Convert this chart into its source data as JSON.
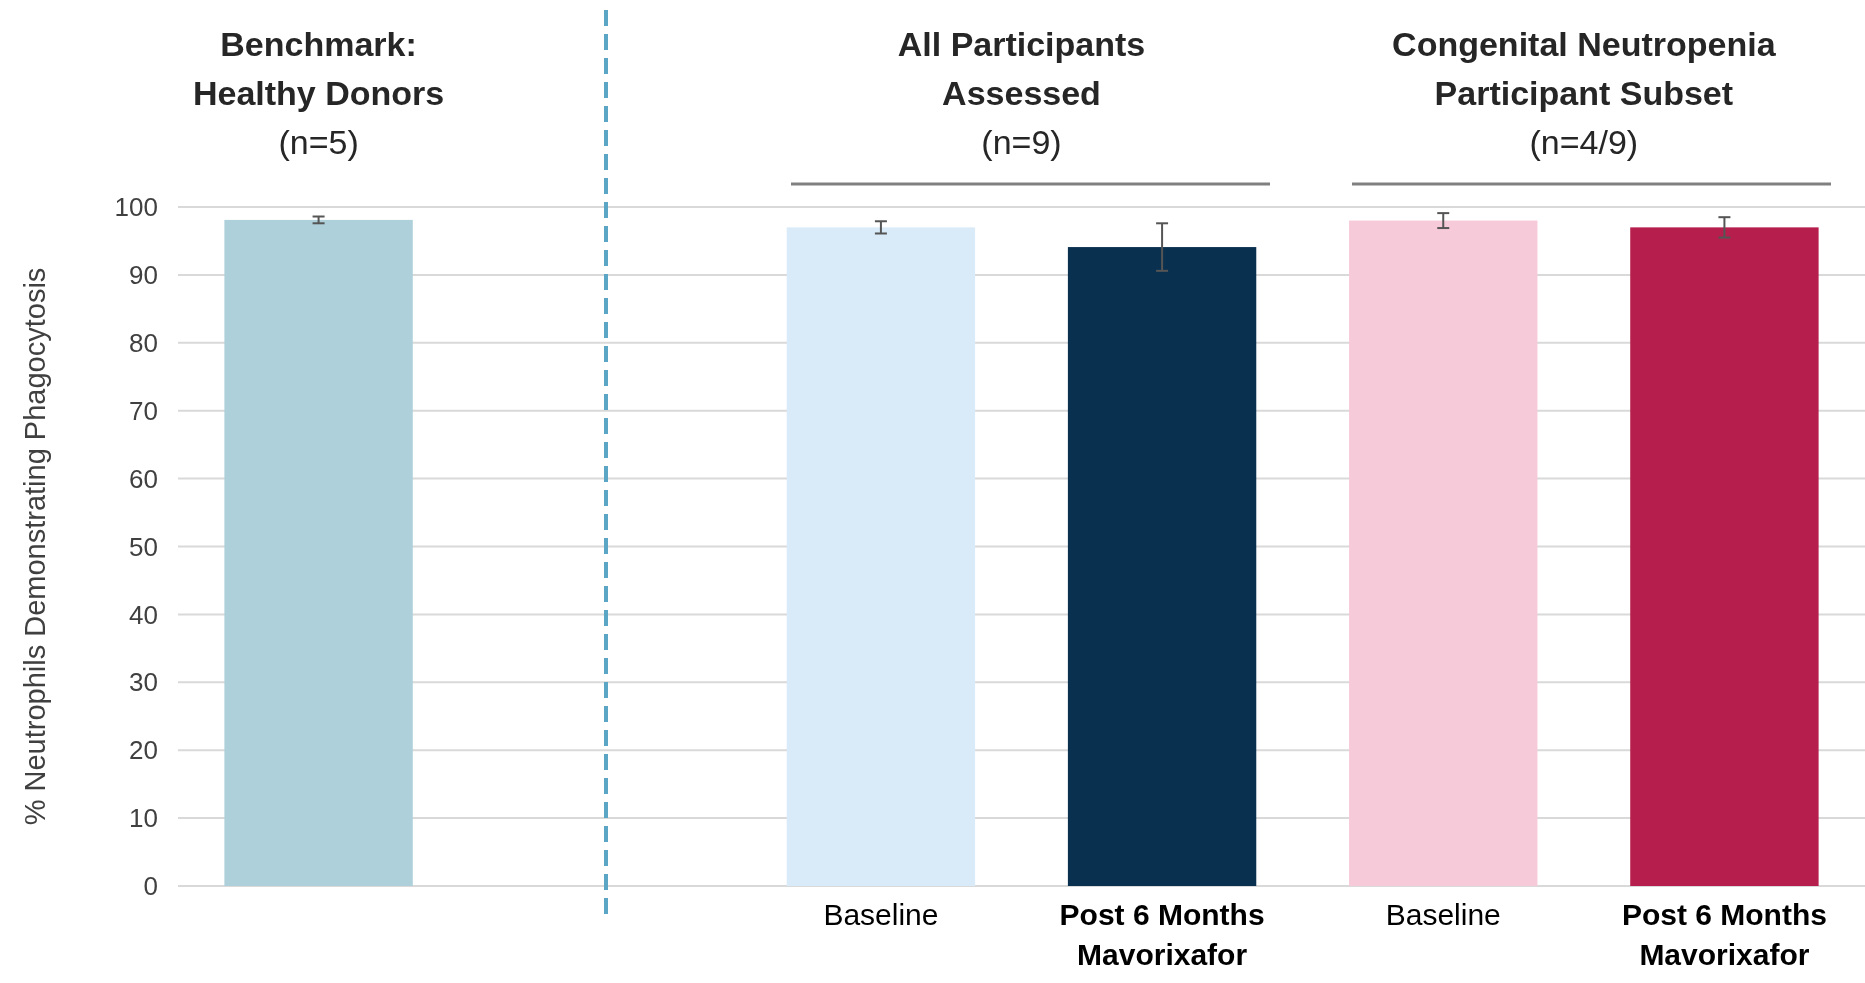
{
  "chart_data": {
    "type": "bar",
    "ylabel": "% Neutrophils Demonstrating Phagocytosis",
    "categories": [
      null,
      null,
      "Baseline",
      "Post 6 Months\nMavorixafor",
      "Baseline",
      "Post 6 Months\nMavorixafor"
    ],
    "values": [
      98.1,
      null,
      97,
      94.1,
      98,
      97
    ],
    "errors": [
      0.5,
      null,
      0.9,
      3.5,
      1.1,
      1.5
    ],
    "colors": [
      "#aed0da",
      null,
      "#d9eaf8",
      "#0a3050",
      "#f6cad9",
      "#b51e4d"
    ],
    "ylim": [
      0,
      100
    ],
    "yticks": [
      0,
      10,
      20,
      30,
      40,
      50,
      60,
      70,
      80,
      90,
      100
    ],
    "grid": "y",
    "annotations": [
      "Benchmark:\nHealthy Donors\n(n=5)",
      "All Participants\nAssessed\n(n=9)",
      "Congenital Neutropenia\nParticipant Subset\n(n=4/9)"
    ]
  }
}
